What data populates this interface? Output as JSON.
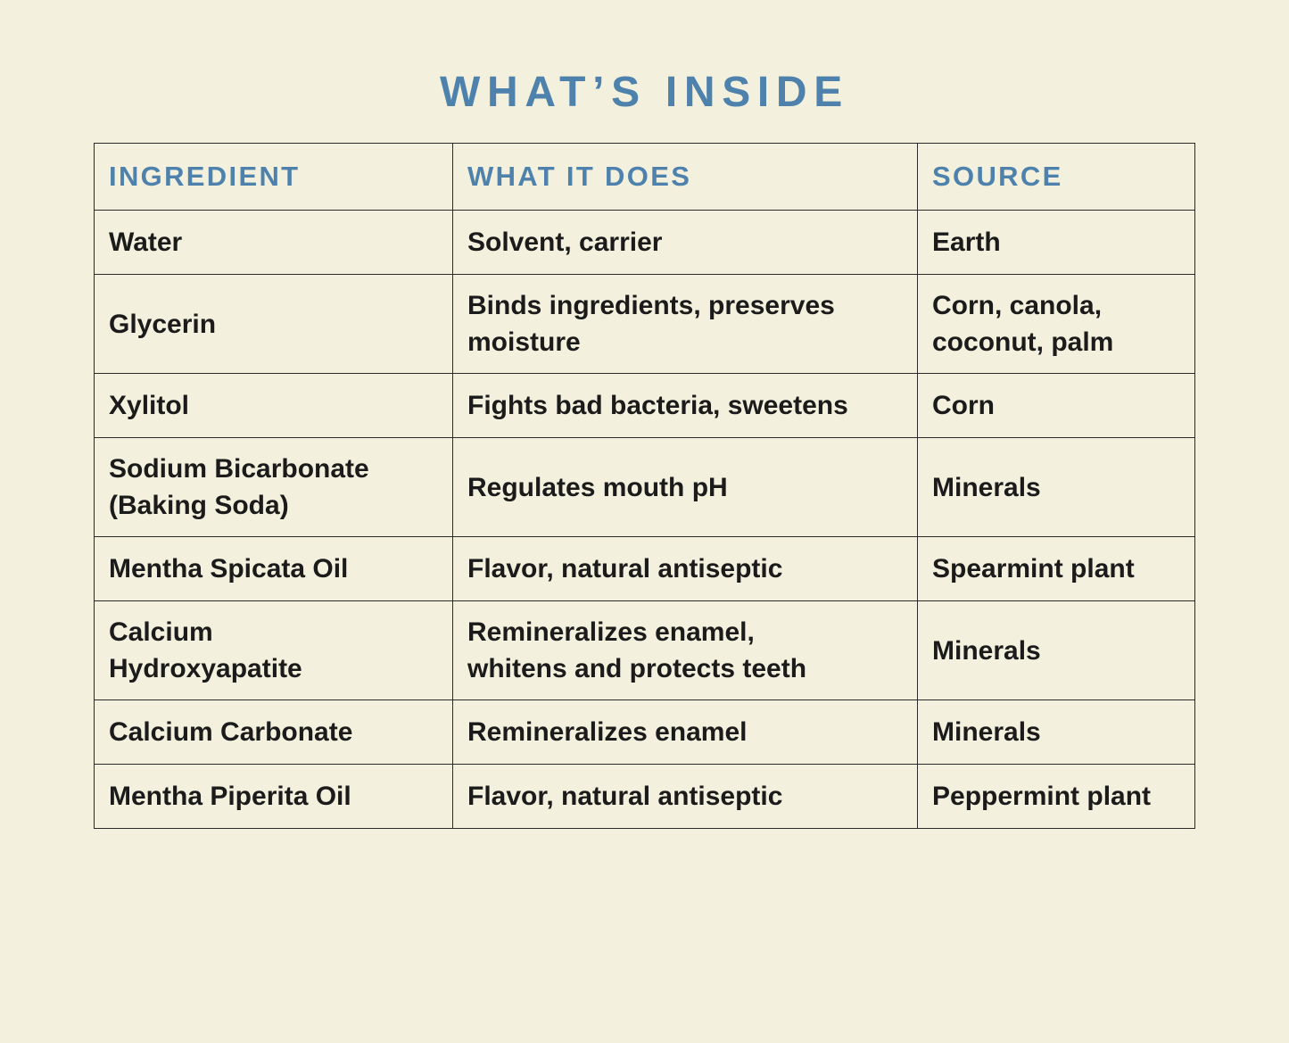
{
  "page": {
    "title": "WHAT’S INSIDE"
  },
  "colors": {
    "background": "#f3f1de",
    "accent_blue": "#4e82ac",
    "body_text": "#1b1b1b",
    "table_border": "#2b2b2b"
  },
  "table": {
    "headers": {
      "ingredient": "INGREDIENT",
      "what_it_does": "WHAT IT DOES",
      "source": "SOURCE"
    },
    "rows": [
      {
        "ingredient": "Water",
        "what_it_does": "Solvent, carrier",
        "source": "Earth"
      },
      {
        "ingredient": "Glycerin",
        "what_it_does": "Binds ingredients, preserves\nmoisture",
        "source": "Corn, canola,\ncoconut, palm"
      },
      {
        "ingredient": "Xylitol",
        "what_it_does": "Fights bad bacteria, sweetens",
        "source": "Corn"
      },
      {
        "ingredient": "Sodium Bicarbonate\n(Baking Soda)",
        "what_it_does": "Regulates mouth pH",
        "source": "Minerals"
      },
      {
        "ingredient": "Mentha Spicata Oil",
        "what_it_does": "Flavor, natural antiseptic",
        "source": "Spearmint plant"
      },
      {
        "ingredient": "Calcium\nHydroxyapatite",
        "what_it_does": "Remineralizes enamel,\nwhitens and protects teeth",
        "source": "Minerals"
      },
      {
        "ingredient": "Calcium Carbonate",
        "what_it_does": "Remineralizes enamel",
        "source": "Minerals"
      },
      {
        "ingredient": "Mentha Piperita Oil",
        "what_it_does": "Flavor, natural antiseptic",
        "source": "Peppermint plant"
      }
    ]
  }
}
